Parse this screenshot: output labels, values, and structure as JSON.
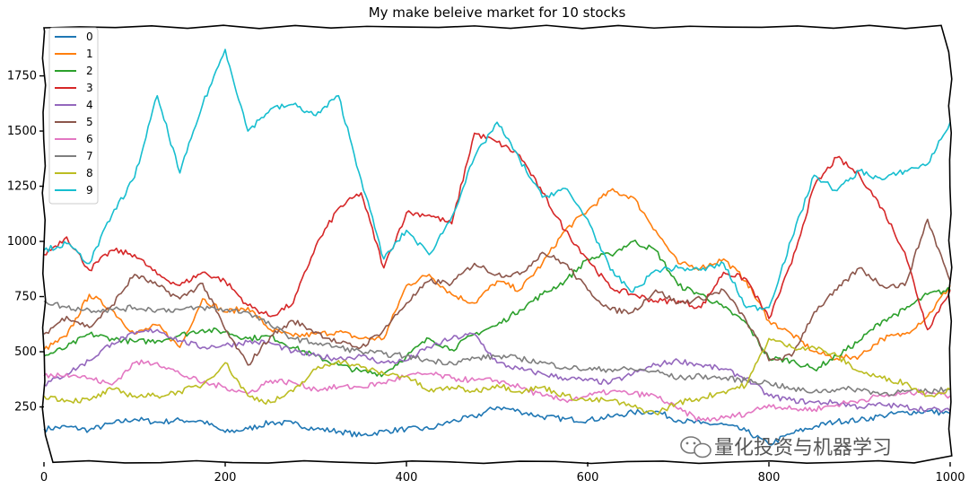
{
  "chart_data": {
    "type": "line",
    "title": "My make beleive market for 10 stocks",
    "xlabel": "",
    "ylabel": "",
    "xlim": [
      0,
      1000
    ],
    "ylim": [
      0,
      1980
    ],
    "xticks": [
      "0",
      "200",
      "400",
      "600",
      "800",
      "1000"
    ],
    "yticks": [
      "250",
      "500",
      "750",
      "1000",
      "1250",
      "1500",
      "1750"
    ],
    "grid": false,
    "legend_position": "top-left",
    "x": [
      0,
      25,
      50,
      75,
      100,
      125,
      150,
      175,
      200,
      225,
      250,
      275,
      300,
      325,
      350,
      375,
      400,
      425,
      450,
      475,
      500,
      525,
      550,
      575,
      600,
      625,
      650,
      675,
      700,
      725,
      750,
      775,
      800,
      825,
      850,
      875,
      900,
      925,
      950,
      975,
      1000
    ],
    "series": [
      {
        "name": "0",
        "color": "#1f77b4",
        "values": [
          150,
          160,
          145,
          175,
          195,
          180,
          190,
          185,
          135,
          150,
          180,
          175,
          150,
          140,
          120,
          140,
          150,
          150,
          185,
          205,
          250,
          230,
          205,
          195,
          190,
          205,
          225,
          230,
          190,
          175,
          170,
          140,
          80,
          130,
          160,
          185,
          190,
          210,
          225,
          230,
          220
        ]
      },
      {
        "name": "1",
        "color": "#ff7f0e",
        "values": [
          510,
          570,
          760,
          690,
          580,
          620,
          520,
          740,
          680,
          700,
          600,
          570,
          580,
          590,
          560,
          560,
          800,
          850,
          760,
          720,
          820,
          780,
          900,
          1050,
          1140,
          1230,
          1200,
          1050,
          900,
          880,
          920,
          820,
          640,
          580,
          500,
          470,
          480,
          560,
          580,
          660,
          800
        ]
      },
      {
        "name": "2",
        "color": "#2ca02c",
        "values": [
          480,
          520,
          580,
          560,
          545,
          550,
          575,
          600,
          590,
          560,
          570,
          520,
          480,
          440,
          410,
          400,
          480,
          560,
          510,
          580,
          620,
          690,
          760,
          820,
          920,
          940,
          1000,
          960,
          800,
          760,
          700,
          630,
          470,
          460,
          420,
          480,
          550,
          640,
          690,
          760,
          780
        ]
      },
      {
        "name": "3",
        "color": "#d62728",
        "values": [
          940,
          1020,
          870,
          960,
          940,
          850,
          800,
          860,
          820,
          710,
          660,
          720,
          980,
          1150,
          1220,
          880,
          1130,
          1120,
          1080,
          1490,
          1450,
          1390,
          1220,
          1050,
          920,
          790,
          760,
          730,
          730,
          700,
          860,
          830,
          650,
          900,
          1250,
          1380,
          1300,
          1150,
          950,
          600,
          780
        ]
      },
      {
        "name": "4",
        "color": "#9467bd",
        "values": [
          350,
          400,
          460,
          540,
          580,
          600,
          550,
          520,
          530,
          545,
          540,
          500,
          480,
          470,
          480,
          450,
          460,
          520,
          560,
          580,
          450,
          420,
          400,
          380,
          370,
          360,
          400,
          440,
          460,
          440,
          420,
          380,
          300,
          280,
          270,
          270,
          250,
          260,
          250,
          240,
          230
        ]
      },
      {
        "name": "5",
        "color": "#8c564b",
        "values": [
          580,
          660,
          610,
          710,
          850,
          800,
          740,
          810,
          600,
          440,
          570,
          640,
          590,
          540,
          520,
          600,
          720,
          820,
          810,
          900,
          850,
          850,
          950,
          900,
          780,
          690,
          680,
          780,
          720,
          740,
          780,
          640,
          460,
          480,
          680,
          780,
          880,
          800,
          800,
          1100,
          820
        ]
      },
      {
        "name": "6",
        "color": "#e377c2",
        "values": [
          390,
          400,
          380,
          350,
          450,
          450,
          400,
          360,
          340,
          310,
          370,
          360,
          330,
          340,
          340,
          360,
          390,
          400,
          380,
          370,
          370,
          340,
          300,
          280,
          300,
          320,
          310,
          300,
          240,
          190,
          200,
          220,
          260,
          240,
          240,
          260,
          280,
          300,
          310,
          320,
          300
        ]
      },
      {
        "name": "7",
        "color": "#7f7f7f",
        "values": [
          730,
          700,
          690,
          690,
          700,
          690,
          690,
          700,
          690,
          680,
          620,
          560,
          540,
          520,
          500,
          490,
          480,
          460,
          450,
          470,
          480,
          470,
          450,
          430,
          420,
          420,
          420,
          410,
          380,
          390,
          380,
          370,
          360,
          330,
          320,
          330,
          330,
          310,
          320,
          320,
          330
        ]
      },
      {
        "name": "8",
        "color": "#bcbd22",
        "values": [
          300,
          280,
          280,
          330,
          300,
          300,
          320,
          350,
          450,
          300,
          270,
          320,
          420,
          460,
          430,
          400,
          390,
          320,
          340,
          320,
          350,
          320,
          340,
          300,
          280,
          280,
          250,
          220,
          270,
          290,
          320,
          350,
          560,
          520,
          520,
          480,
          410,
          380,
          360,
          300,
          330
        ]
      },
      {
        "name": "9",
        "color": "#17becf",
        "values": [
          960,
          990,
          900,
          1120,
          1290,
          1660,
          1310,
          1620,
          1870,
          1500,
          1600,
          1620,
          1570,
          1660,
          1280,
          920,
          1050,
          940,
          1110,
          1380,
          1540,
          1370,
          1200,
          1240,
          1100,
          870,
          770,
          870,
          880,
          870,
          900,
          700,
          700,
          1010,
          1300,
          1230,
          1320,
          1280,
          1320,
          1350,
          1540
        ]
      }
    ]
  },
  "watermark": {
    "icon": "wechat-icon",
    "text": "量化投资与机器学习"
  }
}
